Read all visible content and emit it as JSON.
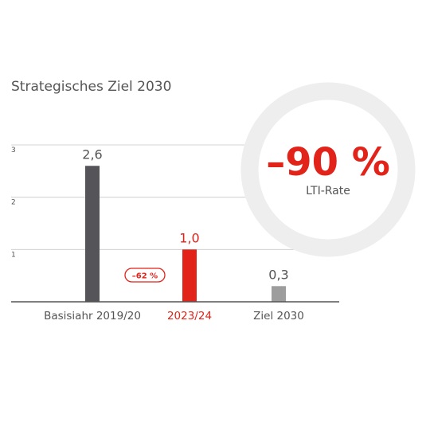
{
  "page": {
    "title": "Strategisches Ziel 2030"
  },
  "colors": {
    "baseline": "#555559",
    "current": "#e2231a",
    "target": "#9d9d9d",
    "grid": "#c8c8c8",
    "text": "#555555",
    "ring": "#eeeeee"
  },
  "badge": {
    "label": "–62 %"
  },
  "highlight": {
    "value": "–90 %",
    "label": "LTI-Rate"
  },
  "chart_data": {
    "type": "bar",
    "title": "Strategisches Ziel 2030",
    "categories": [
      "Basisiahr 2019/20",
      "2023/24",
      "Ziel 2030"
    ],
    "values": [
      2.6,
      1.0,
      0.3
    ],
    "value_labels": [
      "2,6",
      "1,0",
      "0,3"
    ],
    "yticks": [
      1,
      2,
      3
    ],
    "ylim": [
      0,
      3
    ],
    "grid": true,
    "xlabel": "",
    "ylabel": ""
  }
}
